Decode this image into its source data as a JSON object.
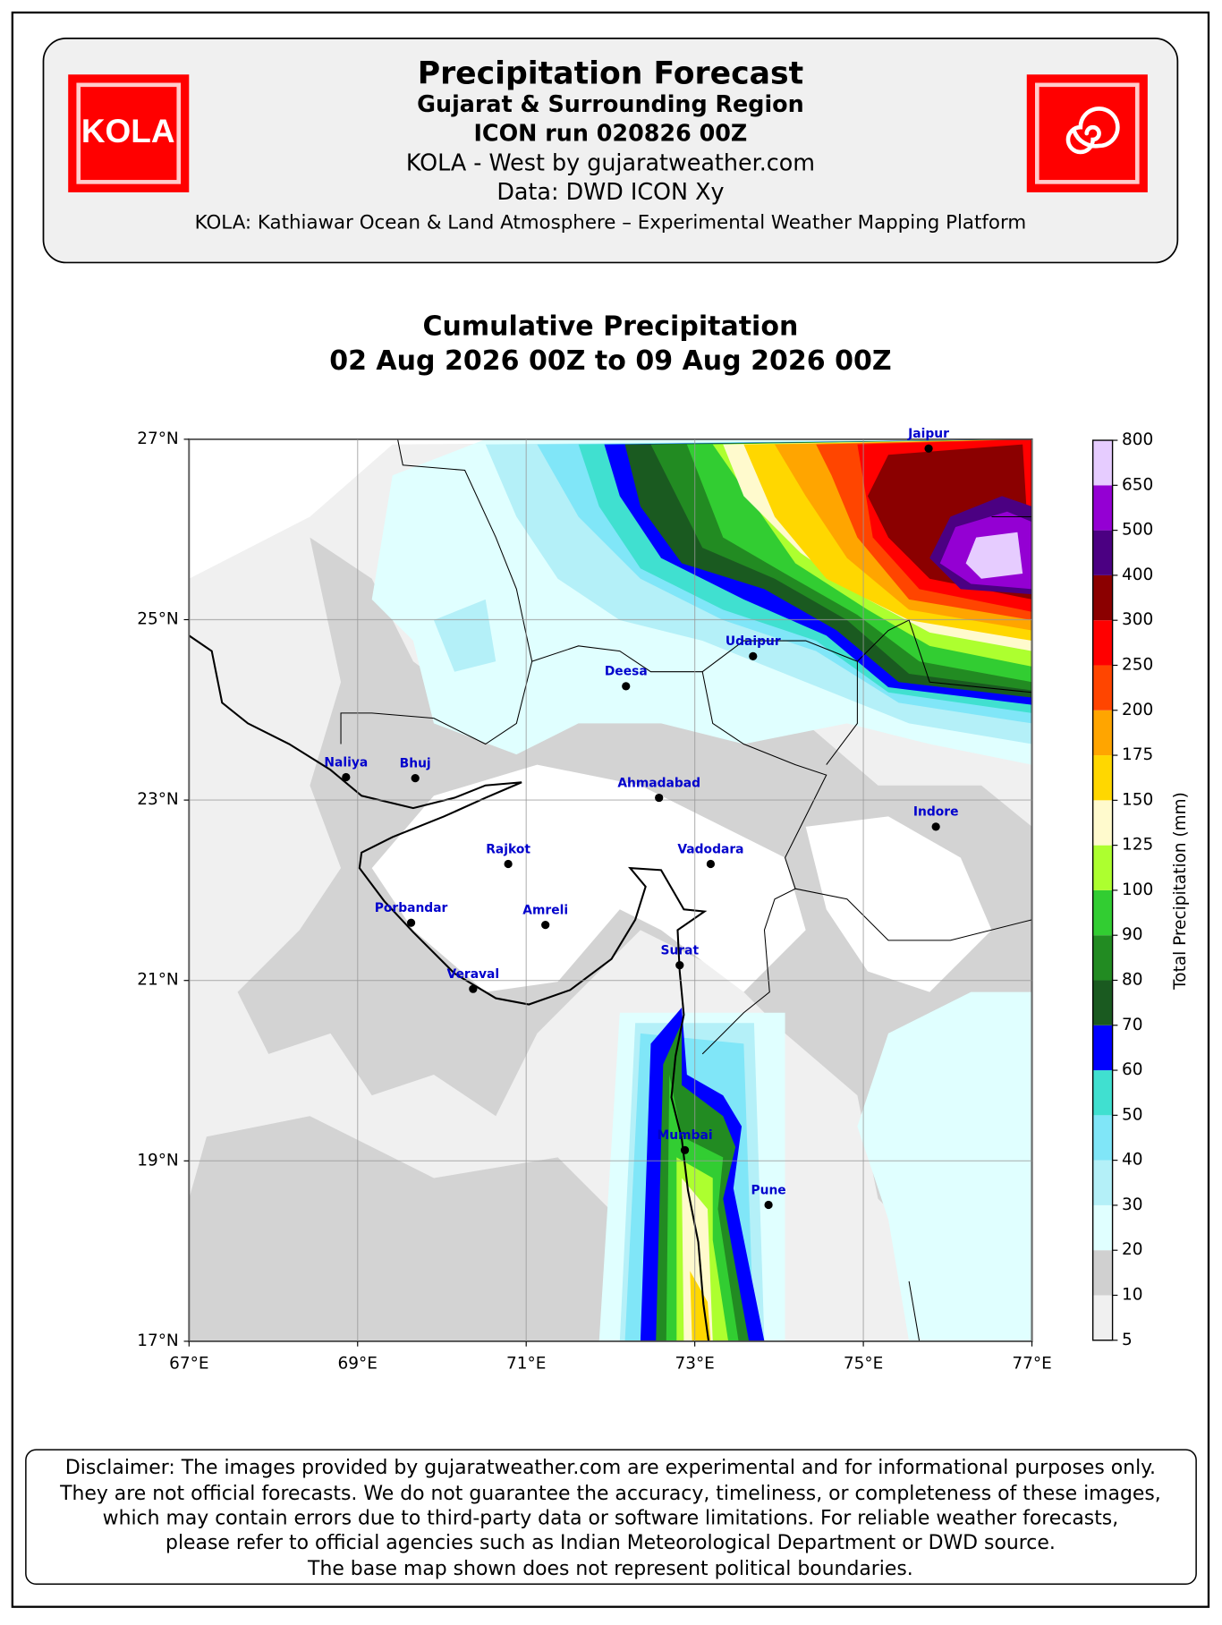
{
  "header": {
    "logo_text": "KOLA",
    "title": "Precipitation Forecast",
    "lines": [
      "Gujarat & Surrounding Region",
      "ICON run 020826 00Z",
      "KOLA - West by gujaratweather.com",
      "Data: DWD ICON Xy",
      "KOLA: Kathiawar Ocean & Land Atmosphere – Experimental Weather Mapping Platform"
    ]
  },
  "map": {
    "title_lines": [
      "Cumulative Precipitation",
      "02 Aug 2026 00Z to 09 Aug 2026 00Z"
    ],
    "xlim": [
      67,
      77
    ],
    "ylim": [
      17,
      27
    ],
    "xticks": [
      {
        "value": 67,
        "label": "67°E"
      },
      {
        "value": 69,
        "label": "69°E"
      },
      {
        "value": 71,
        "label": "71°E"
      },
      {
        "value": 73,
        "label": "73°E"
      },
      {
        "value": 75,
        "label": "75°E"
      },
      {
        "value": 77,
        "label": "77°E"
      }
    ],
    "yticks": [
      {
        "value": 17,
        "label": "17°N"
      },
      {
        "value": 19,
        "label": "19°N"
      },
      {
        "value": 21,
        "label": "21°N"
      },
      {
        "value": 23,
        "label": "23°N"
      },
      {
        "value": 25,
        "label": "25°N"
      },
      {
        "value": 27,
        "label": "27°N"
      }
    ],
    "grid": true,
    "cities": [
      "Jaipur",
      "Udaipur",
      "Deesa",
      "Naliya",
      "Bhuj",
      "Ahmadabad",
      "Indore",
      "Rajkot",
      "Vadodara",
      "Porbandar",
      "Amreli",
      "Surat",
      "Veraval",
      "Mumbai",
      "Pune"
    ]
  },
  "colorbar": {
    "label": "Total Precipitation (mm)",
    "levels": [
      5,
      10,
      20,
      30,
      40,
      50,
      60,
      70,
      80,
      90,
      100,
      125,
      150,
      175,
      200,
      250,
      300,
      400,
      500,
      650,
      800
    ],
    "colors": [
      "#f0f0f0",
      "#d0d0d0",
      "#e0ffff",
      "#b4f0f8",
      "#80e6f8",
      "#40e0d0",
      "#0000ff",
      "#1a5a20",
      "#228b22",
      "#32cd32",
      "#adff2f",
      "#fffacd",
      "#ffd700",
      "#ffa500",
      "#ff4500",
      "#ff0000",
      "#8b0000",
      "#4b0082",
      "#9400d3",
      "#e6ccff"
    ]
  },
  "disclaimer": [
    "Disclaimer: The images provided by gujaratweather.com are experimental and for informational purposes only.",
    "They are not official forecasts. We do not guarantee the accuracy, timeliness, or completeness of these images,",
    "which may contain errors due to third-party data or software limitations. For reliable weather forecasts,",
    "please refer to official agencies such as Indian Meteorological Department or DWD source.",
    "The base map shown does not represent political boundaries."
  ]
}
